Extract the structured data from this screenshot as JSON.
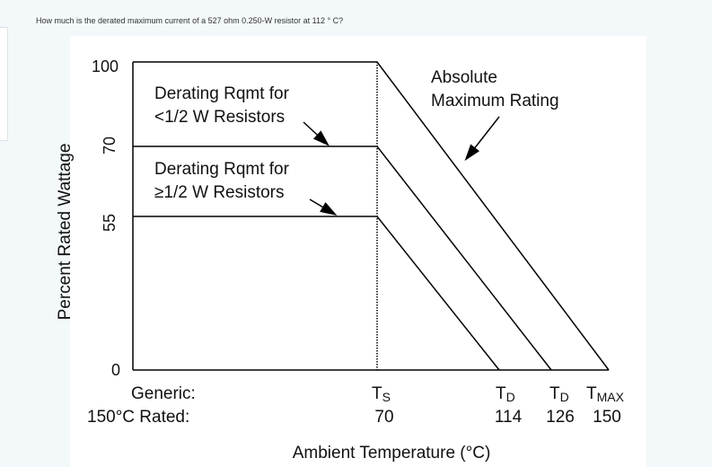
{
  "question": "How much is the derated maximum current of a 527 ohm 0.250-W resistor at 112 ° C?",
  "chart_data": {
    "type": "line",
    "ylabel": "Percent Rated Wattage",
    "xlabel": "Ambient Temperature (°C)",
    "y_ticks": [
      "100",
      "70",
      "55",
      "0"
    ],
    "x_ticks": [
      {
        "symbol": "T",
        "sub": "S",
        "value": "70"
      },
      {
        "symbol": "T",
        "sub": "D",
        "value": "114"
      },
      {
        "symbol": "T",
        "sub": "D",
        "value": "126"
      },
      {
        "symbol": "T",
        "sub": "MAX",
        "value": "150"
      }
    ],
    "generic_label": "Generic:",
    "rated_label": "150°C Rated:",
    "series": [
      {
        "name": "Absolute Maximum Rating",
        "points": [
          [
            0,
            100
          ],
          [
            70,
            100
          ],
          [
            150,
            0
          ]
        ]
      },
      {
        "name": "Derating Rqmt for <1/2 W Resistors",
        "points": [
          [
            0,
            70
          ],
          [
            70,
            70
          ],
          [
            126,
            0
          ]
        ]
      },
      {
        "name": "Derating Rqmt for ≥1/2 W Resistors",
        "points": [
          [
            0,
            55
          ],
          [
            70,
            55
          ],
          [
            114,
            0
          ]
        ]
      }
    ],
    "annotations": {
      "abs_line1": "Absolute",
      "abs_line2": "Maximum Rating",
      "lt_line1": "Derating Rqmt for",
      "lt_line2": "<1/2 W Resistors",
      "ge_line1": "Derating Rqmt for",
      "ge_line2": "≥1/2 W Resistors"
    },
    "colors": {
      "line": "#000000"
    }
  }
}
